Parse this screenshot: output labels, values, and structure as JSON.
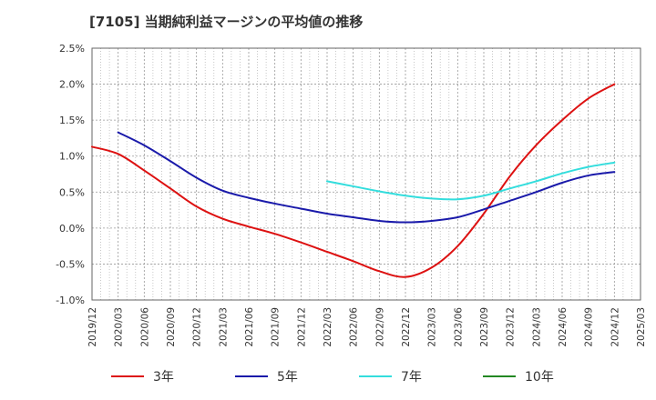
{
  "chart_data": {
    "type": "line",
    "title": "[7105]  当期純利益マージンの平均値の推移",
    "xlabel": "",
    "ylabel": "",
    "x_ticks": [
      "2019/12",
      "2020/03",
      "2020/06",
      "2020/09",
      "2020/12",
      "2021/03",
      "2021/06",
      "2021/09",
      "2021/12",
      "2022/03",
      "2022/06",
      "2022/09",
      "2022/12",
      "2023/03",
      "2023/06",
      "2023/09",
      "2023/12",
      "2024/03",
      "2024/06",
      "2024/09",
      "2024/12",
      "2025/03"
    ],
    "y_ticks": [
      "-1.0%",
      "-0.5%",
      "0.0%",
      "0.5%",
      "1.0%",
      "1.5%",
      "2.0%",
      "2.5%"
    ],
    "ylim": [
      -1.0,
      2.5
    ],
    "grid": true,
    "legend_position": "bottom",
    "series": [
      {
        "name": "3年",
        "color": "#dd1111",
        "x": [
          "2019/12",
          "2020/03",
          "2020/06",
          "2020/09",
          "2020/12",
          "2021/03",
          "2021/06",
          "2021/09",
          "2021/12",
          "2022/03",
          "2022/06",
          "2022/09",
          "2022/12",
          "2023/03",
          "2023/06",
          "2023/09",
          "2023/12",
          "2024/03",
          "2024/06",
          "2024/09",
          "2024/12"
        ],
        "values": [
          1.13,
          1.03,
          0.8,
          0.55,
          0.3,
          0.13,
          0.02,
          -0.08,
          -0.2,
          -0.33,
          -0.46,
          -0.6,
          -0.68,
          -0.55,
          -0.25,
          0.2,
          0.72,
          1.15,
          1.5,
          1.8,
          2.0
        ]
      },
      {
        "name": "5年",
        "color": "#1a1aaa",
        "x": [
          "2020/03",
          "2020/06",
          "2020/09",
          "2020/12",
          "2021/03",
          "2021/06",
          "2021/09",
          "2021/12",
          "2022/03",
          "2022/06",
          "2022/09",
          "2022/12",
          "2023/03",
          "2023/06",
          "2023/09",
          "2023/12",
          "2024/03",
          "2024/06",
          "2024/09",
          "2024/12"
        ],
        "values": [
          1.33,
          1.15,
          0.93,
          0.7,
          0.52,
          0.42,
          0.34,
          0.27,
          0.2,
          0.15,
          0.1,
          0.08,
          0.1,
          0.15,
          0.26,
          0.38,
          0.5,
          0.63,
          0.73,
          0.78
        ]
      },
      {
        "name": "7年",
        "color": "#33dddd",
        "x": [
          "2022/03",
          "2022/06",
          "2022/09",
          "2022/12",
          "2023/03",
          "2023/06",
          "2023/09",
          "2023/12",
          "2024/03",
          "2024/06",
          "2024/09",
          "2024/12"
        ],
        "values": [
          0.65,
          0.58,
          0.51,
          0.45,
          0.41,
          0.4,
          0.45,
          0.55,
          0.65,
          0.76,
          0.85,
          0.91
        ]
      },
      {
        "name": "10年",
        "color": "#228822",
        "x": [],
        "values": []
      }
    ]
  }
}
